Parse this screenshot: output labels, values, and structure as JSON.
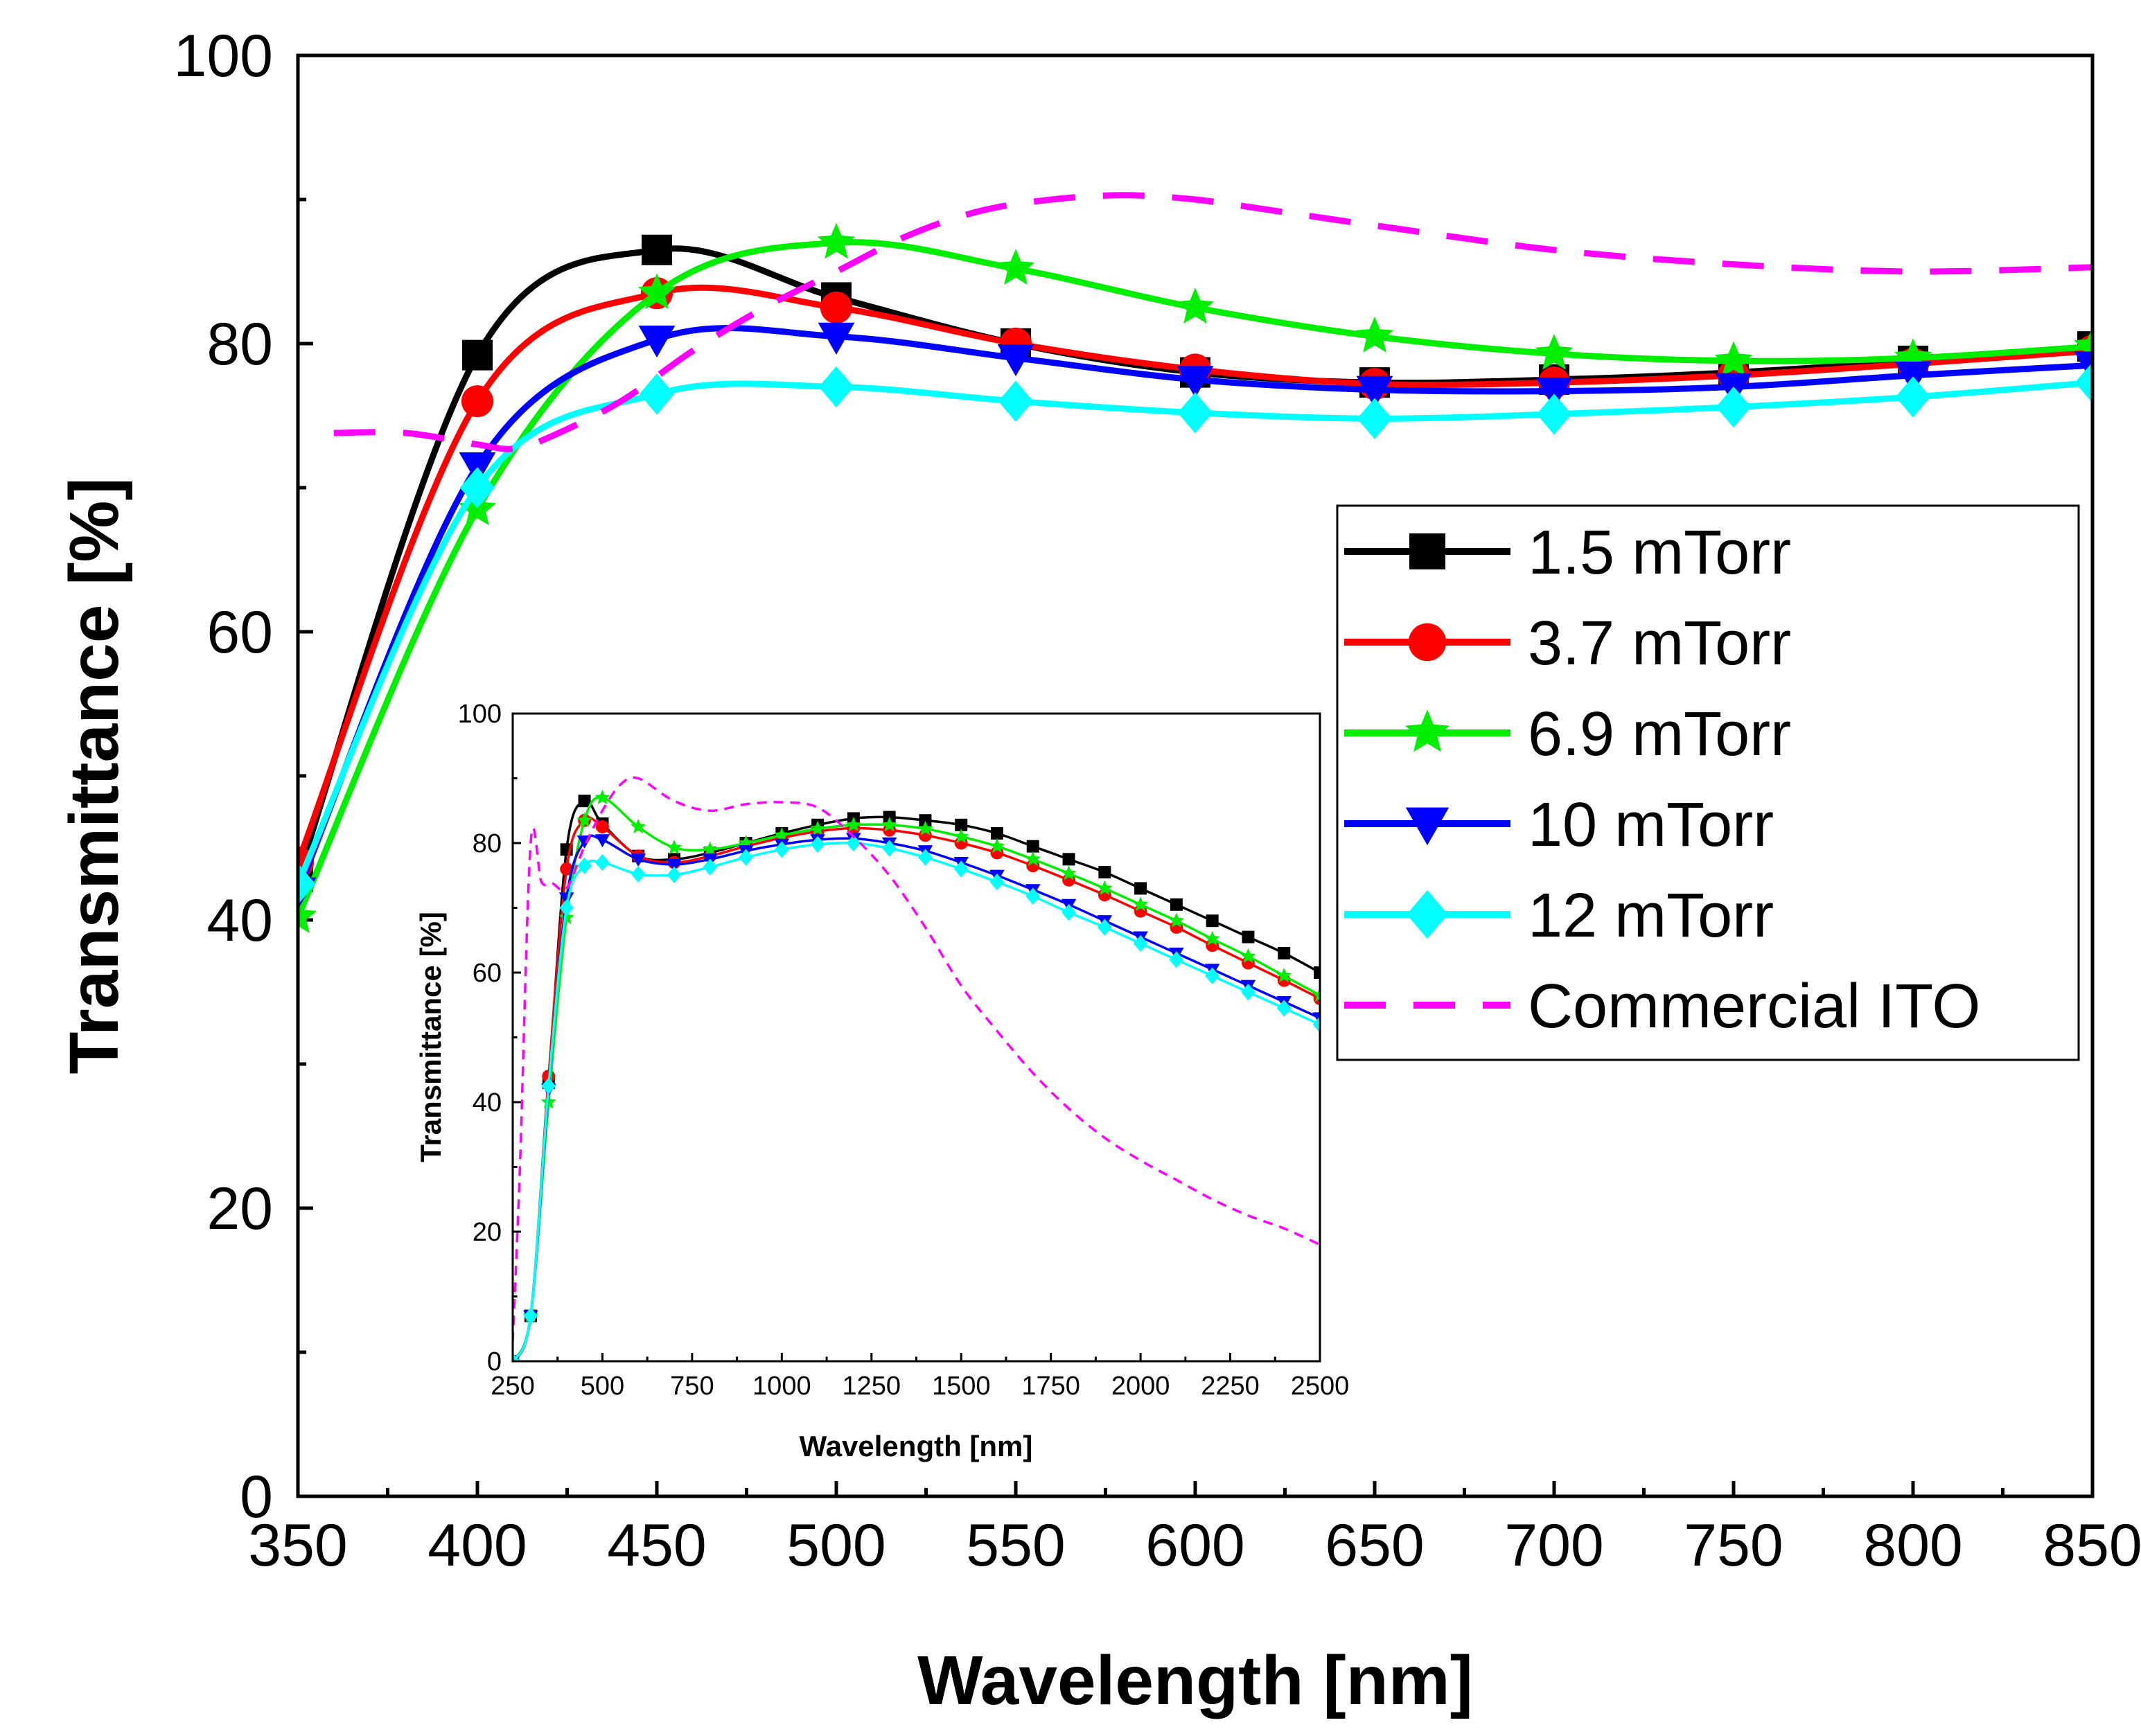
{
  "chart_data": [
    {
      "type": "line",
      "role": "main",
      "xlabel": "Wavelength [nm]",
      "ylabel": "Transmittance [%]",
      "xlim": [
        350,
        850
      ],
      "ylim": [
        0,
        100
      ],
      "x_ticks": [
        350,
        400,
        450,
        500,
        550,
        600,
        650,
        700,
        750,
        800,
        850
      ],
      "y_ticks": [
        0,
        20,
        40,
        60,
        80,
        100
      ],
      "legend_position": "right",
      "series": [
        {
          "name": "1.5 mTorr",
          "color": "#000000",
          "marker": "square",
          "x": [
            350,
            400,
            450,
            500,
            550,
            600,
            650,
            700,
            750,
            800,
            850
          ],
          "y": [
            43,
            79.2,
            86.5,
            83.2,
            80,
            78,
            77.3,
            77.5,
            78,
            78.8,
            79.8
          ]
        },
        {
          "name": "3.7 mTorr",
          "color": "#ff0000",
          "marker": "circle",
          "x": [
            350,
            400,
            450,
            500,
            550,
            600,
            650,
            700,
            750,
            800,
            850
          ],
          "y": [
            44,
            76,
            83.5,
            82.5,
            80,
            78.2,
            77.2,
            77.3,
            77.8,
            78.6,
            79.5
          ]
        },
        {
          "name": "6.9 mTorr",
          "color": "#00ee00",
          "marker": "star",
          "x": [
            350,
            400,
            450,
            500,
            550,
            600,
            650,
            700,
            750,
            800,
            850
          ],
          "y": [
            40.2,
            68.5,
            83.5,
            87,
            85.2,
            82.5,
            80.5,
            79.3,
            78.8,
            79,
            79.8
          ]
        },
        {
          "name": "10 mTorr",
          "color": "#0000ff",
          "marker": "triangle-down",
          "x": [
            350,
            400,
            450,
            500,
            550,
            600,
            650,
            700,
            750,
            800,
            850
          ],
          "y": [
            42,
            71.5,
            80.3,
            80.5,
            79,
            77.5,
            76.8,
            76.7,
            77,
            77.8,
            78.5
          ]
        },
        {
          "name": "12 mTorr",
          "color": "#00ffff",
          "marker": "diamond",
          "x": [
            350,
            400,
            450,
            500,
            550,
            600,
            650,
            700,
            750,
            800,
            850
          ],
          "y": [
            42.5,
            70,
            76.5,
            77,
            76,
            75.2,
            74.8,
            75.1,
            75.6,
            76.3,
            77.3
          ]
        },
        {
          "name": "Commercial ITO",
          "color": "#ff00ff",
          "marker": "none",
          "dash": true,
          "x": [
            360,
            380,
            400,
            410,
            420,
            440,
            460,
            480,
            500,
            520,
            540,
            560,
            580,
            600,
            620,
            650,
            700,
            750,
            800,
            850
          ],
          "y": [
            73.8,
            73.8,
            73,
            72.7,
            73.5,
            76,
            79.5,
            82.5,
            85,
            87.5,
            89.2,
            90,
            90.3,
            90,
            89.3,
            88.2,
            86.5,
            85.5,
            85,
            85.3
          ]
        }
      ]
    },
    {
      "type": "line",
      "role": "inset",
      "xlabel": "Wavelength [nm]",
      "ylabel": "Transmittance [%]",
      "xlim": [
        250,
        2500
      ],
      "ylim": [
        0,
        100
      ],
      "x_ticks": [
        250,
        500,
        750,
        1000,
        1250,
        1500,
        1750,
        2000,
        2250,
        2500
      ],
      "y_ticks": [
        0,
        20,
        40,
        60,
        80,
        100
      ],
      "series": [
        {
          "name": "1.5 mTorr",
          "color": "#000000",
          "marker": "square",
          "x": [
            250,
            300,
            350,
            400,
            450,
            500,
            600,
            700,
            800,
            900,
            1000,
            1100,
            1200,
            1300,
            1400,
            1500,
            1600,
            1700,
            1800,
            1900,
            2000,
            2100,
            2200,
            2300,
            2400,
            2500
          ],
          "y": [
            0,
            7,
            43,
            79,
            86.5,
            83,
            78,
            77.5,
            78.5,
            80,
            81.5,
            82.8,
            83.8,
            84,
            83.5,
            82.8,
            81.5,
            79.5,
            77.5,
            75.5,
            73,
            70.5,
            68,
            65.5,
            63,
            60
          ]
        },
        {
          "name": "3.7 mTorr",
          "color": "#ff0000",
          "marker": "circle",
          "x": [
            250,
            300,
            350,
            400,
            450,
            500,
            600,
            700,
            800,
            900,
            1000,
            1100,
            1200,
            1300,
            1400,
            1500,
            1600,
            1700,
            1800,
            1900,
            2000,
            2100,
            2200,
            2300,
            2400,
            2500
          ],
          "y": [
            0,
            7,
            44,
            76,
            83.5,
            82.5,
            78,
            77,
            78,
            79.5,
            80.8,
            81.8,
            82.3,
            82,
            81.2,
            80,
            78.5,
            76.5,
            74.3,
            72,
            69.5,
            67,
            64.2,
            61.5,
            58.8,
            56
          ]
        },
        {
          "name": "6.9 mTorr",
          "color": "#00ee00",
          "marker": "star",
          "x": [
            250,
            300,
            350,
            400,
            450,
            500,
            600,
            700,
            800,
            900,
            1000,
            1100,
            1200,
            1300,
            1400,
            1500,
            1600,
            1700,
            1800,
            1900,
            2000,
            2100,
            2200,
            2300,
            2400,
            2500
          ],
          "y": [
            0,
            7,
            40,
            68.5,
            83.5,
            87,
            82.5,
            79.3,
            79,
            80,
            81.2,
            82.2,
            82.8,
            82.8,
            82.2,
            81,
            79.5,
            77.5,
            75.3,
            73,
            70.5,
            68,
            65.2,
            62.5,
            59.5,
            56.5
          ]
        },
        {
          "name": "10 mTorr",
          "color": "#0000ff",
          "marker": "triangle-down",
          "x": [
            250,
            300,
            350,
            400,
            450,
            500,
            600,
            700,
            800,
            900,
            1000,
            1100,
            1200,
            1300,
            1400,
            1500,
            1600,
            1700,
            1800,
            1900,
            2000,
            2100,
            2200,
            2300,
            2400,
            2500
          ],
          "y": [
            0,
            7,
            42,
            71.5,
            80.3,
            80.5,
            77.5,
            76.7,
            77.5,
            78.8,
            79.8,
            80.5,
            80.7,
            80,
            78.8,
            77,
            75,
            72.8,
            70.5,
            68,
            65.5,
            63,
            60.5,
            58,
            55.5,
            53
          ]
        },
        {
          "name": "12 mTorr",
          "color": "#00ffff",
          "marker": "diamond",
          "x": [
            250,
            300,
            350,
            400,
            450,
            500,
            600,
            700,
            800,
            900,
            1000,
            1100,
            1200,
            1300,
            1400,
            1500,
            1600,
            1700,
            1800,
            1900,
            2000,
            2100,
            2200,
            2300,
            2400,
            2500
          ],
          "y": [
            0,
            7,
            42.5,
            70,
            76.5,
            77,
            75.2,
            75.1,
            76.3,
            77.8,
            79,
            79.8,
            80,
            79.2,
            77.8,
            76,
            74,
            71.8,
            69.3,
            67,
            64.5,
            62,
            59.5,
            57,
            54.5,
            52
          ]
        },
        {
          "name": "Commercial ITO",
          "color": "#ff00ff",
          "marker": "none",
          "dash": true,
          "x": [
            250,
            270,
            300,
            330,
            360,
            400,
            450,
            500,
            550,
            600,
            700,
            800,
            900,
            1000,
            1100,
            1200,
            1300,
            1400,
            1500,
            1600,
            1700,
            1800,
            1900,
            2000,
            2100,
            2200,
            2300,
            2400,
            2500
          ],
          "y": [
            3,
            30,
            80,
            74,
            73.8,
            73,
            79.5,
            85,
            89,
            90,
            86.5,
            85,
            86,
            86.3,
            85.5,
            81,
            75,
            67,
            58,
            51,
            44.5,
            39,
            34.5,
            31,
            28,
            25,
            22.5,
            20.5,
            18
          ]
        }
      ]
    }
  ]
}
